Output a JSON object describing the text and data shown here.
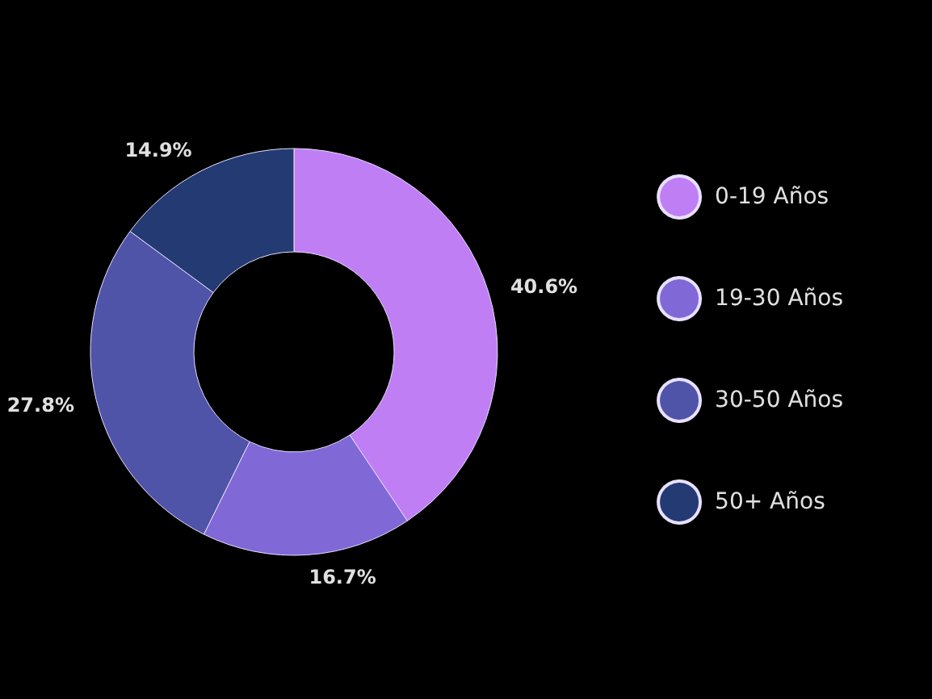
{
  "chart_data": {
    "type": "donut",
    "categories": [
      "0-19 Años",
      "19-30 Años",
      "30-50 Años",
      "50+ Años"
    ],
    "values": [
      40.6,
      16.7,
      27.8,
      14.9
    ],
    "value_labels": [
      "40.6%",
      "16.7%",
      "27.8%",
      "14.9%"
    ],
    "colors": [
      "#c07ef5",
      "#8068d6",
      "#5054a8",
      "#233a72"
    ],
    "legend": "right"
  }
}
